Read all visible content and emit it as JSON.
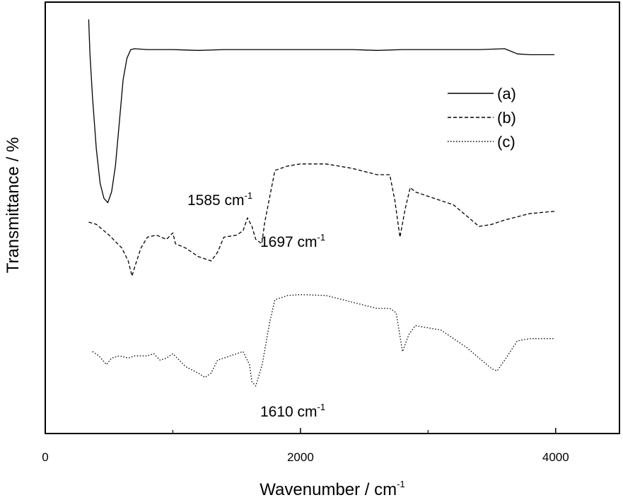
{
  "chart_data": {
    "type": "line",
    "title": "",
    "xlabel": "Wavenumber / cm",
    "xlabel_sup": "-1",
    "ylabel": "Transmittance / %",
    "xlim": [
      0,
      4500
    ],
    "x_ticks": [
      {
        "value": 0,
        "label": "0"
      },
      {
        "value": 2000,
        "label": "2000"
      },
      {
        "value": 4000,
        "label": "4000"
      }
    ],
    "y_ticks": [],
    "grid": false,
    "legend_position": "top-right",
    "legend": [
      {
        "label": "(a)",
        "dash": "solid"
      },
      {
        "label": "(b)",
        "dash": "dashed"
      },
      {
        "label": "(c)",
        "dash": "dotted"
      }
    ],
    "series": [
      {
        "name": "(a)",
        "color": "#000000",
        "dash": "solid",
        "x": [
          340,
          350,
          370,
          400,
          430,
          460,
          490,
          520,
          550,
          580,
          610,
          640,
          670,
          700,
          800,
          900,
          1000,
          1200,
          1400,
          1600,
          1800,
          2000,
          2200,
          2400,
          2600,
          2800,
          3000,
          3200,
          3400,
          3600,
          3650,
          3700,
          3800,
          3990
        ],
        "y": [
          96,
          88,
          78,
          66,
          58,
          54.5,
          53.5,
          56,
          62,
          72,
          82,
          87,
          89,
          89.2,
          89,
          89,
          89,
          88.8,
          89,
          89,
          89,
          89,
          89,
          89,
          88.8,
          89,
          89,
          89,
          89,
          89.2,
          88.6,
          88,
          87.8,
          87.8
        ]
      },
      {
        "name": "(b)",
        "color": "#000000",
        "dash": "dashed",
        "x": [
          340,
          400,
          500,
          600,
          650,
          680,
          700,
          750,
          800,
          870,
          950,
          1000,
          1020,
          1100,
          1200,
          1300,
          1350,
          1400,
          1500,
          1550,
          1585,
          1620,
          1650,
          1697,
          1720,
          1760,
          1800,
          1900,
          2000,
          2200,
          2400,
          2600,
          2700,
          2740,
          2780,
          2820,
          2860,
          2900,
          3000,
          3200,
          3400,
          3500,
          3600,
          3800,
          3990
        ],
        "y": [
          49,
          48.5,
          46,
          43,
          40,
          36.5,
          38.5,
          43,
          45.5,
          46,
          45,
          46.5,
          44,
          43,
          41,
          40,
          42,
          45.5,
          46,
          47,
          50,
          48,
          45,
          44,
          49,
          55,
          61,
          62,
          62.5,
          62.5,
          61.5,
          60,
          60,
          54,
          45.5,
          52,
          57,
          56,
          55,
          53,
          48,
          48.5,
          49.5,
          51,
          51.5
        ]
      },
      {
        "name": "(c)",
        "color": "#000000",
        "dash": "dotted",
        "x": [
          370,
          420,
          480,
          520,
          580,
          650,
          700,
          800,
          850,
          900,
          950,
          1000,
          1050,
          1100,
          1200,
          1250,
          1300,
          1350,
          1400,
          1500,
          1550,
          1600,
          1620,
          1650,
          1700,
          1760,
          1800,
          1900,
          2000,
          2200,
          2400,
          2600,
          2700,
          2750,
          2800,
          2850,
          2900,
          3000,
          3100,
          3200,
          3300,
          3400,
          3500,
          3540,
          3600,
          3700,
          3800,
          3990
        ],
        "y": [
          19,
          18,
          16,
          17.5,
          18,
          17.5,
          18,
          18,
          18.5,
          17,
          17.5,
          18.5,
          17,
          15.5,
          14,
          13,
          14,
          17,
          17.5,
          18.5,
          19,
          16,
          12,
          11,
          16,
          26,
          31,
          32,
          32.2,
          32,
          30.5,
          29,
          29,
          28,
          19,
          23,
          25,
          24.5,
          24,
          22,
          20,
          17.5,
          15,
          14.5,
          17,
          21.5,
          22,
          22
        ]
      }
    ],
    "annotations": [
      {
        "text": "1585 cm",
        "sup": "-1"
      },
      {
        "text": "1697 cm",
        "sup": "-1"
      },
      {
        "text": "1610 cm",
        "sup": "-1"
      }
    ]
  }
}
